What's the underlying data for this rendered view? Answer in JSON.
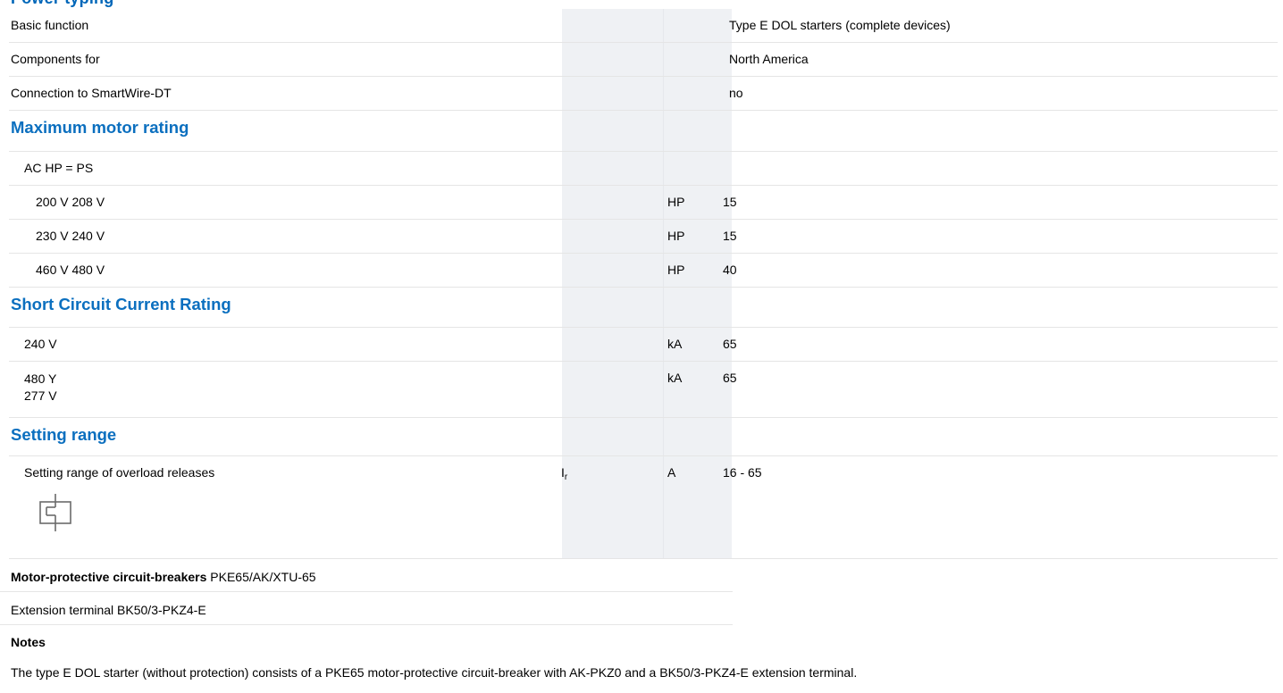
{
  "section_title": "Power typing",
  "general": [
    {
      "label": "Basic function",
      "value": "Type E DOL starters (complete devices)"
    },
    {
      "label": "Components for",
      "value": "North America"
    },
    {
      "label": "Connection to SmartWire-DT",
      "value": "no"
    }
  ],
  "motor_rating": {
    "heading": "Maximum motor rating",
    "subgroup": "AC HP = PS",
    "rows": [
      {
        "label": "200 V 208 V",
        "unit": "HP",
        "value": "15"
      },
      {
        "label": "230 V 240 V",
        "unit": "HP",
        "value": "15"
      },
      {
        "label": "460 V 480 V",
        "unit": "HP",
        "value": "40"
      }
    ]
  },
  "sccr": {
    "heading": "Short Circuit Current Rating",
    "rows": [
      {
        "label": "240 V",
        "unit": "kA",
        "value": "65"
      },
      {
        "label_line1": "480 Y",
        "label_line2": "277 V",
        "unit": "kA",
        "value": "65"
      }
    ]
  },
  "setting_range": {
    "heading": "Setting range",
    "label": "Setting range of overload releases",
    "symbol_main": "I",
    "symbol_sub": "r",
    "unit": "A",
    "value": "16 - 65",
    "icon": "overload-release-symbol-icon"
  },
  "components": {
    "mpcb_bold": "Motor-protective circuit-breakers",
    "mpcb_value": "PKE65/AK/XTU-65",
    "extension": "Extension terminal BK50/3-PKZ4-E"
  },
  "notes": {
    "heading": "Notes",
    "text": "The type E DOL starter (without protection) consists of a PKE65 motor-protective circuit-breaker with AK-PKZ0 and a BK50/3-PKZ4-E extension terminal."
  }
}
